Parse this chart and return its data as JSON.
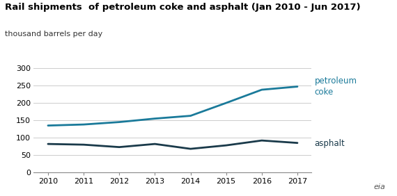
{
  "title": "Rail shipments  of petroleum coke and asphalt (Jan 2010 - Jun 2017)",
  "subtitle": "thousand barrels per day",
  "petroleum_coke": {
    "x": [
      2010,
      2011,
      2012,
      2013,
      2014,
      2015,
      2016,
      2017
    ],
    "y": [
      135,
      138,
      145,
      155,
      163,
      200,
      238,
      247
    ],
    "color": "#1a7a9a",
    "label": "petroleum\ncoke"
  },
  "asphalt": {
    "x": [
      2010,
      2011,
      2012,
      2013,
      2014,
      2015,
      2016,
      2017
    ],
    "y": [
      82,
      80,
      73,
      82,
      68,
      78,
      92,
      85
    ],
    "color": "#1a3a4a",
    "label": "asphalt"
  },
  "xlim": [
    2009.6,
    2017.4
  ],
  "ylim": [
    0,
    310
  ],
  "yticks": [
    0,
    50,
    100,
    150,
    200,
    250,
    300
  ],
  "xticks": [
    2010,
    2011,
    2012,
    2013,
    2014,
    2015,
    2016,
    2017
  ],
  "grid_color": "#cccccc",
  "background_color": "#ffffff",
  "title_fontsize": 9.5,
  "subtitle_fontsize": 8,
  "tick_fontsize": 8
}
